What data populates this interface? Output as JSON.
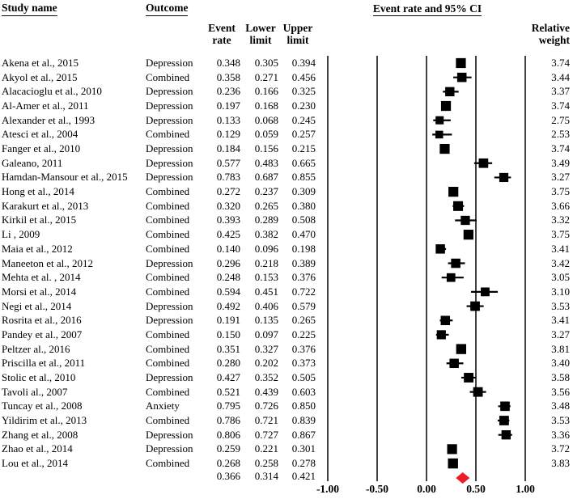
{
  "header": {
    "study_name": "Study name",
    "outcome": "Outcome",
    "plot_title": "Event rate and 95% CI",
    "event_rate_l1": "Event",
    "event_rate_l2": "rate",
    "lower_l1": "Lower",
    "lower_l2": "limit",
    "upper_l1": "Upper",
    "upper_l2": "limit",
    "weight_l1": "Relative",
    "weight_l2": "weight"
  },
  "colors": {
    "text": "#000000",
    "marker": "#000000",
    "ci_line": "#000000",
    "gridline": "#000000",
    "summary_diamond": "#ed1c24"
  },
  "chart_data": {
    "type": "scatter",
    "subtype": "forest-plot",
    "title": "Event rate and 95% CI",
    "xlabel": "",
    "x_tick_labels": [
      "-1.00",
      "-0.50",
      "0.00",
      "0.50",
      "1.00"
    ],
    "x_tick_values": [
      -1.0,
      -0.5,
      0.0,
      0.5,
      1.0
    ],
    "xlim": [
      -1.1,
      1.25
    ],
    "grid": "vertical-lines-at-ticks",
    "columns": [
      "Study name",
      "Outcome",
      "Event rate",
      "Lower limit",
      "Upper limit",
      "Relative weight"
    ],
    "studies": [
      {
        "name": "Akena et al., 2015",
        "outcome": "Depression",
        "rate": 0.348,
        "lower": 0.305,
        "upper": 0.394,
        "weight": 3.74
      },
      {
        "name": "Akyol et al., 2015",
        "outcome": "Combined",
        "rate": 0.358,
        "lower": 0.271,
        "upper": 0.456,
        "weight": 3.44
      },
      {
        "name": "Alacacioglu et al., 2010",
        "outcome": "Depression",
        "rate": 0.236,
        "lower": 0.166,
        "upper": 0.325,
        "weight": 3.37
      },
      {
        "name": "Al-Amer et al., 2011",
        "outcome": "Depression",
        "rate": 0.197,
        "lower": 0.168,
        "upper": 0.23,
        "weight": 3.74
      },
      {
        "name": "Alexander et al., 1993",
        "outcome": "Depression",
        "rate": 0.133,
        "lower": 0.068,
        "upper": 0.245,
        "weight": 2.75
      },
      {
        "name": "Atesci et al., 2004",
        "outcome": "Combined",
        "rate": 0.129,
        "lower": 0.059,
        "upper": 0.257,
        "weight": 2.53
      },
      {
        "name": "Fanger et al., 2010",
        "outcome": "Depression",
        "rate": 0.184,
        "lower": 0.156,
        "upper": 0.215,
        "weight": 3.74
      },
      {
        "name": "Galeano, 2011",
        "outcome": "Depression",
        "rate": 0.577,
        "lower": 0.483,
        "upper": 0.665,
        "weight": 3.49
      },
      {
        "name": "Hamdan-Mansour et al., 2015",
        "outcome": "Depression",
        "rate": 0.783,
        "lower": 0.687,
        "upper": 0.855,
        "weight": 3.27
      },
      {
        "name": "Hong et al., 2014",
        "outcome": "Combined",
        "rate": 0.272,
        "lower": 0.237,
        "upper": 0.309,
        "weight": 3.75
      },
      {
        "name": "Karakurt et al., 2013",
        "outcome": "Combined",
        "rate": 0.32,
        "lower": 0.265,
        "upper": 0.38,
        "weight": 3.66
      },
      {
        "name": "Kirkil et al., 2015",
        "outcome": "Combined",
        "rate": 0.393,
        "lower": 0.289,
        "upper": 0.508,
        "weight": 3.32
      },
      {
        "name": "Li , 2009",
        "outcome": "Combined",
        "rate": 0.425,
        "lower": 0.382,
        "upper": 0.47,
        "weight": 3.75
      },
      {
        "name": "Maia et al., 2012",
        "outcome": "Combined",
        "rate": 0.14,
        "lower": 0.096,
        "upper": 0.198,
        "weight": 3.41
      },
      {
        "name": "Maneeton et al., 2012",
        "outcome": "Depression",
        "rate": 0.296,
        "lower": 0.218,
        "upper": 0.389,
        "weight": 3.42
      },
      {
        "name": "Mehta et al. , 2014",
        "outcome": "Combined",
        "rate": 0.248,
        "lower": 0.153,
        "upper": 0.376,
        "weight": 3.05
      },
      {
        "name": "Morsi et al., 2014",
        "outcome": "Combined",
        "rate": 0.594,
        "lower": 0.451,
        "upper": 0.722,
        "weight": 3.1
      },
      {
        "name": "Negi et al., 2014",
        "outcome": "Depression",
        "rate": 0.492,
        "lower": 0.406,
        "upper": 0.579,
        "weight": 3.53
      },
      {
        "name": "Rosrita et al., 2016",
        "outcome": "Depression",
        "rate": 0.191,
        "lower": 0.135,
        "upper": 0.265,
        "weight": 3.41
      },
      {
        "name": "Pandey et al., 2007",
        "outcome": "Combined",
        "rate": 0.15,
        "lower": 0.097,
        "upper": 0.225,
        "weight": 3.27
      },
      {
        "name": "Peltzer al., 2016",
        "outcome": "Combined",
        "rate": 0.351,
        "lower": 0.327,
        "upper": 0.376,
        "weight": 3.81
      },
      {
        "name": "Priscilla et al., 2011",
        "outcome": "Combined",
        "rate": 0.28,
        "lower": 0.202,
        "upper": 0.373,
        "weight": 3.4
      },
      {
        "name": "Stolic et al., 2010",
        "outcome": "Depression",
        "rate": 0.427,
        "lower": 0.352,
        "upper": 0.505,
        "weight": 3.58
      },
      {
        "name": "Tavoli al., 2007",
        "outcome": "Combined",
        "rate": 0.521,
        "lower": 0.439,
        "upper": 0.603,
        "weight": 3.56
      },
      {
        "name": "Tuncay et al., 2008",
        "outcome": "Anxiety",
        "rate": 0.795,
        "lower": 0.726,
        "upper": 0.85,
        "weight": 3.48
      },
      {
        "name": "Yildirim et al., 2013",
        "outcome": "Combined",
        "rate": 0.786,
        "lower": 0.721,
        "upper": 0.839,
        "weight": 3.53
      },
      {
        "name": "Zhang et al., 2008",
        "outcome": "Depression",
        "rate": 0.806,
        "lower": 0.727,
        "upper": 0.867,
        "weight": 3.36
      },
      {
        "name": "Zhao et al., 2014",
        "outcome": "Depression",
        "rate": 0.259,
        "lower": 0.221,
        "upper": 0.301,
        "weight": 3.72
      },
      {
        "name": "Lou et al., 2014",
        "outcome": "Combined",
        "rate": 0.268,
        "lower": 0.258,
        "upper": 0.278,
        "weight": 3.83
      }
    ],
    "summary": {
      "rate": 0.366,
      "lower": 0.314,
      "upper": 0.421
    }
  }
}
